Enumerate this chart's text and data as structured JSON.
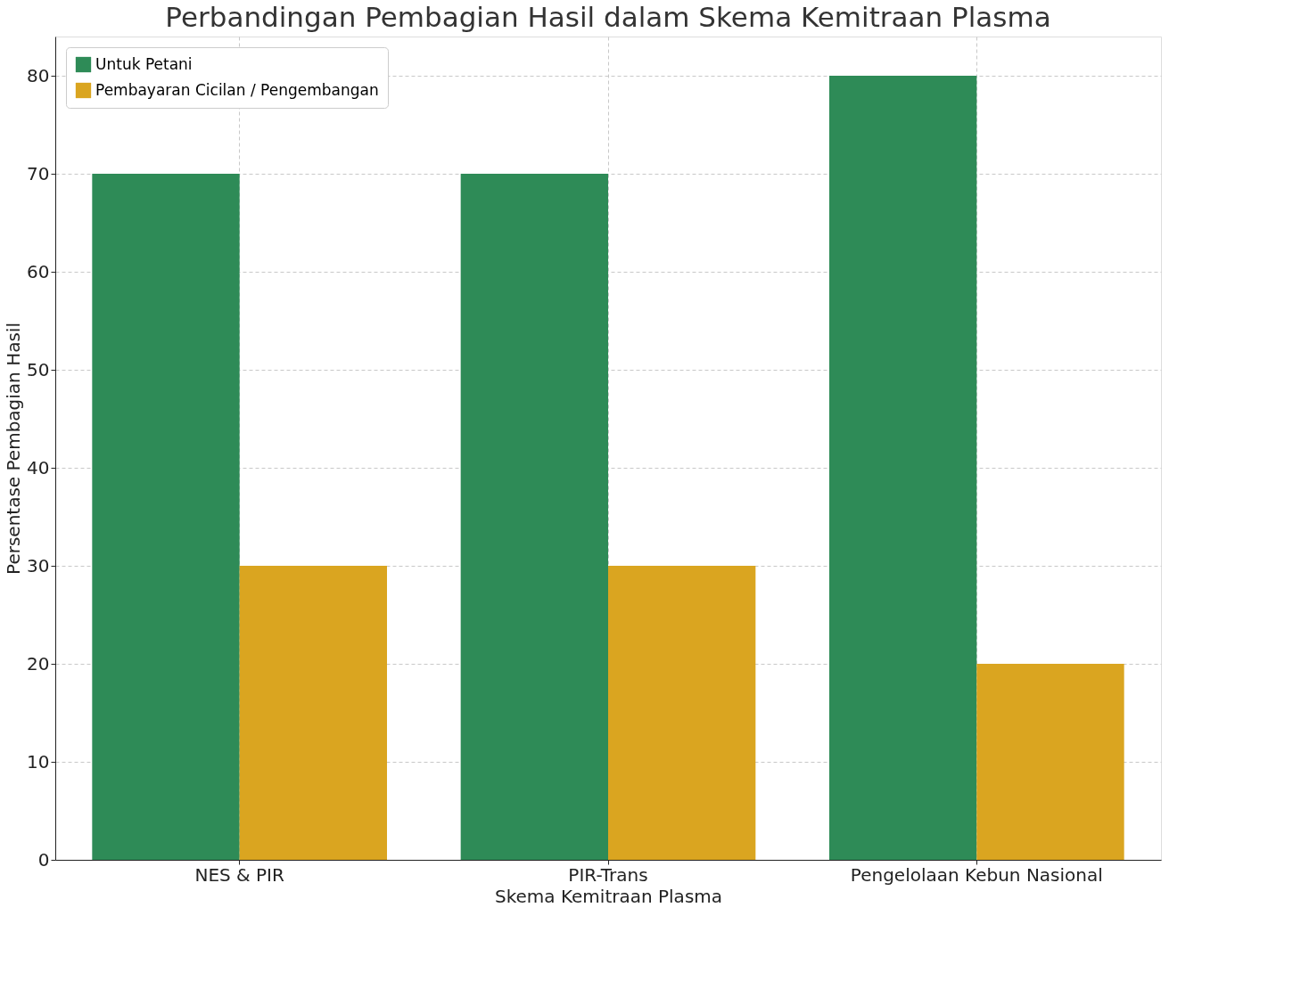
{
  "chart_data": {
    "type": "bar",
    "title": "Perbandingan Pembagian Hasil dalam Skema Kemitraan Plasma",
    "xlabel": "Skema Kemitraan Plasma",
    "ylabel": "Persentase Pembagian Hasil",
    "categories": [
      "NES & PIR",
      "PIR-Trans",
      "Pengelolaan Kebun Nasional"
    ],
    "series": [
      {
        "name": "Untuk Petani",
        "color": "#2e8b57",
        "values": [
          70,
          70,
          80
        ]
      },
      {
        "name": "Pembayaran Cicilan / Pengembangan",
        "color": "#daa520",
        "values": [
          30,
          30,
          20
        ]
      }
    ],
    "ylim": [
      0,
      84
    ],
    "yticks": [
      0,
      10,
      20,
      30,
      40,
      50,
      60,
      70,
      80
    ],
    "grid": true,
    "legend": "top left"
  }
}
